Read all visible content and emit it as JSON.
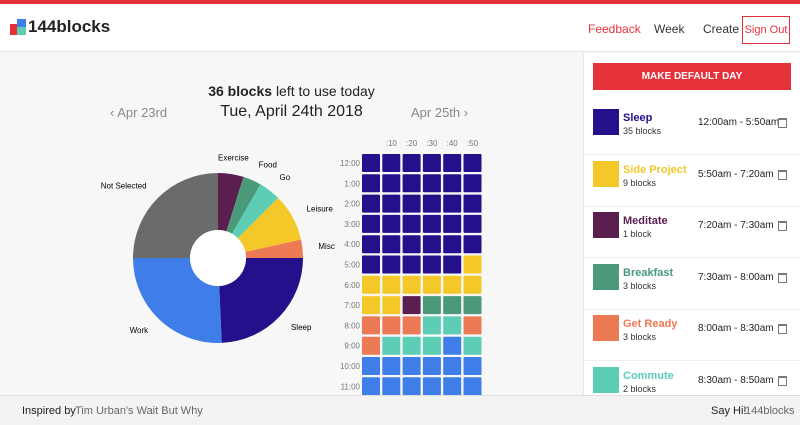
{
  "header": {
    "brand": "144blocks",
    "nav": [
      "Feedback",
      "Week",
      "Create"
    ],
    "sign_out": "Sign Out"
  },
  "summary": {
    "count": "36 blocks",
    "rest": "left to use today"
  },
  "day_nav": {
    "prev": "Apr 23rd",
    "date": "Tue, April 24th 2018",
    "next": "Apr 25th"
  },
  "chart_data": {
    "type": "pie",
    "donut": true,
    "categories": [
      "Exercise",
      "Food",
      "Go",
      "Leisure",
      "Misc",
      "Sleep",
      "Work",
      "Not Selected"
    ],
    "values": [
      7,
      5,
      6,
      13,
      5,
      35,
      37,
      36
    ],
    "colors": [
      "#5a1e4f",
      "#4a9a7a",
      "#5ecdb5",
      "#f5c829",
      "#ec7a55",
      "#23108a",
      "#3f7de8",
      "#6b6b6b"
    ]
  },
  "grid": {
    "columns": [
      null,
      ":10",
      ":20",
      ":30",
      ":40",
      ":50"
    ],
    "rows": [
      {
        "label": "12:00",
        "cells": [
          "#23108a",
          "#23108a",
          "#23108a",
          "#23108a",
          "#23108a",
          "#23108a"
        ]
      },
      {
        "label": "1:00",
        "cells": [
          "#23108a",
          "#23108a",
          "#23108a",
          "#23108a",
          "#23108a",
          "#23108a"
        ]
      },
      {
        "label": "2:00",
        "cells": [
          "#23108a",
          "#23108a",
          "#23108a",
          "#23108a",
          "#23108a",
          "#23108a"
        ]
      },
      {
        "label": "3:00",
        "cells": [
          "#23108a",
          "#23108a",
          "#23108a",
          "#23108a",
          "#23108a",
          "#23108a"
        ]
      },
      {
        "label": "4:00",
        "cells": [
          "#23108a",
          "#23108a",
          "#23108a",
          "#23108a",
          "#23108a",
          "#23108a"
        ]
      },
      {
        "label": "5:00",
        "cells": [
          "#23108a",
          "#23108a",
          "#23108a",
          "#23108a",
          "#23108a",
          "#f5c829"
        ]
      },
      {
        "label": "6:00",
        "cells": [
          "#f5c829",
          "#f5c829",
          "#f5c829",
          "#f5c829",
          "#f5c829",
          "#f5c829"
        ]
      },
      {
        "label": "7:00",
        "cells": [
          "#f5c829",
          "#f5c829",
          "#5a1e4f",
          "#4a9a7a",
          "#4a9a7a",
          "#4a9a7a"
        ]
      },
      {
        "label": "8:00",
        "cells": [
          "#ec7a55",
          "#ec7a55",
          "#ec7a55",
          "#5ecdb5",
          "#5ecdb5",
          "#ec7a55"
        ]
      },
      {
        "label": "9:00",
        "cells": [
          "#ec7a55",
          "#5ecdb5",
          "#5ecdb5",
          "#5ecdb5",
          "#3f7de8",
          "#5ecdb5"
        ]
      },
      {
        "label": "10:00",
        "cells": [
          "#3f7de8",
          "#3f7de8",
          "#3f7de8",
          "#3f7de8",
          "#3f7de8",
          "#3f7de8"
        ]
      },
      {
        "label": "11:00",
        "cells": [
          "#3f7de8",
          "#3f7de8",
          "#3f7de8",
          "#3f7de8",
          "#3f7de8",
          "#3f7de8"
        ]
      }
    ]
  },
  "sidebar": {
    "button": "MAKE DEFAULT DAY",
    "items": [
      {
        "name": "Sleep",
        "blocks": "35 blocks",
        "time": "12:00am - 5:50am",
        "color": "#23108a"
      },
      {
        "name": "Side Project",
        "blocks": "9 blocks",
        "time": "5:50am - 7:20am",
        "color": "#f5c829"
      },
      {
        "name": "Meditate",
        "blocks": "1 block",
        "time": "7:20am - 7:30am",
        "color": "#5a1e4f"
      },
      {
        "name": "Breakfast",
        "blocks": "3 blocks",
        "time": "7:30am - 8:00am",
        "color": "#4a9a7a"
      },
      {
        "name": "Get Ready",
        "blocks": "3 blocks",
        "time": "8:00am - 8:30am",
        "color": "#ec7a55"
      },
      {
        "name": "Commute",
        "blocks": "2 blocks",
        "time": "8:30am - 8:50am",
        "color": "#5ecdb5"
      }
    ]
  },
  "footer": {
    "inspired": "Inspired by",
    "link": "Tim Urban's Wait But Why",
    "say_hi": "Say Hi!",
    "brand": "144blocks"
  }
}
